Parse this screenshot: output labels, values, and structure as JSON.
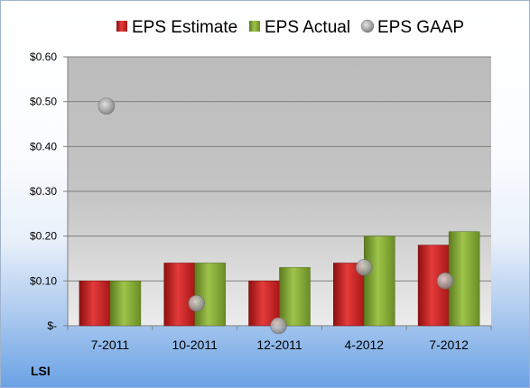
{
  "chart_data": {
    "type": "bar",
    "categories": [
      "7-2011",
      "10-2011",
      "12-2011",
      "4-2012",
      "7-2012"
    ],
    "series": [
      {
        "name": "EPS Estimate",
        "kind": "bar",
        "color": "#d42525",
        "values": [
          0.1,
          0.14,
          0.1,
          0.14,
          0.18
        ]
      },
      {
        "name": "EPS Actual",
        "kind": "bar",
        "color": "#86ab34",
        "values": [
          0.1,
          0.14,
          0.13,
          0.2,
          0.21
        ]
      },
      {
        "name": "EPS GAAP",
        "kind": "scatter",
        "color": "#a9a9a9",
        "values": [
          0.49,
          0.05,
          0.0,
          0.13,
          0.1
        ]
      }
    ],
    "ylim": [
      0,
      0.6
    ],
    "yticks": [
      0,
      0.1,
      0.2,
      0.3,
      0.4,
      0.5,
      0.6
    ],
    "ytick_labels": [
      "$-",
      "$0.10",
      "$0.20",
      "$0.30",
      "$0.40",
      "$0.50",
      "$0.60"
    ],
    "grid": true,
    "legend_position": "top"
  },
  "ticker": "LSI"
}
